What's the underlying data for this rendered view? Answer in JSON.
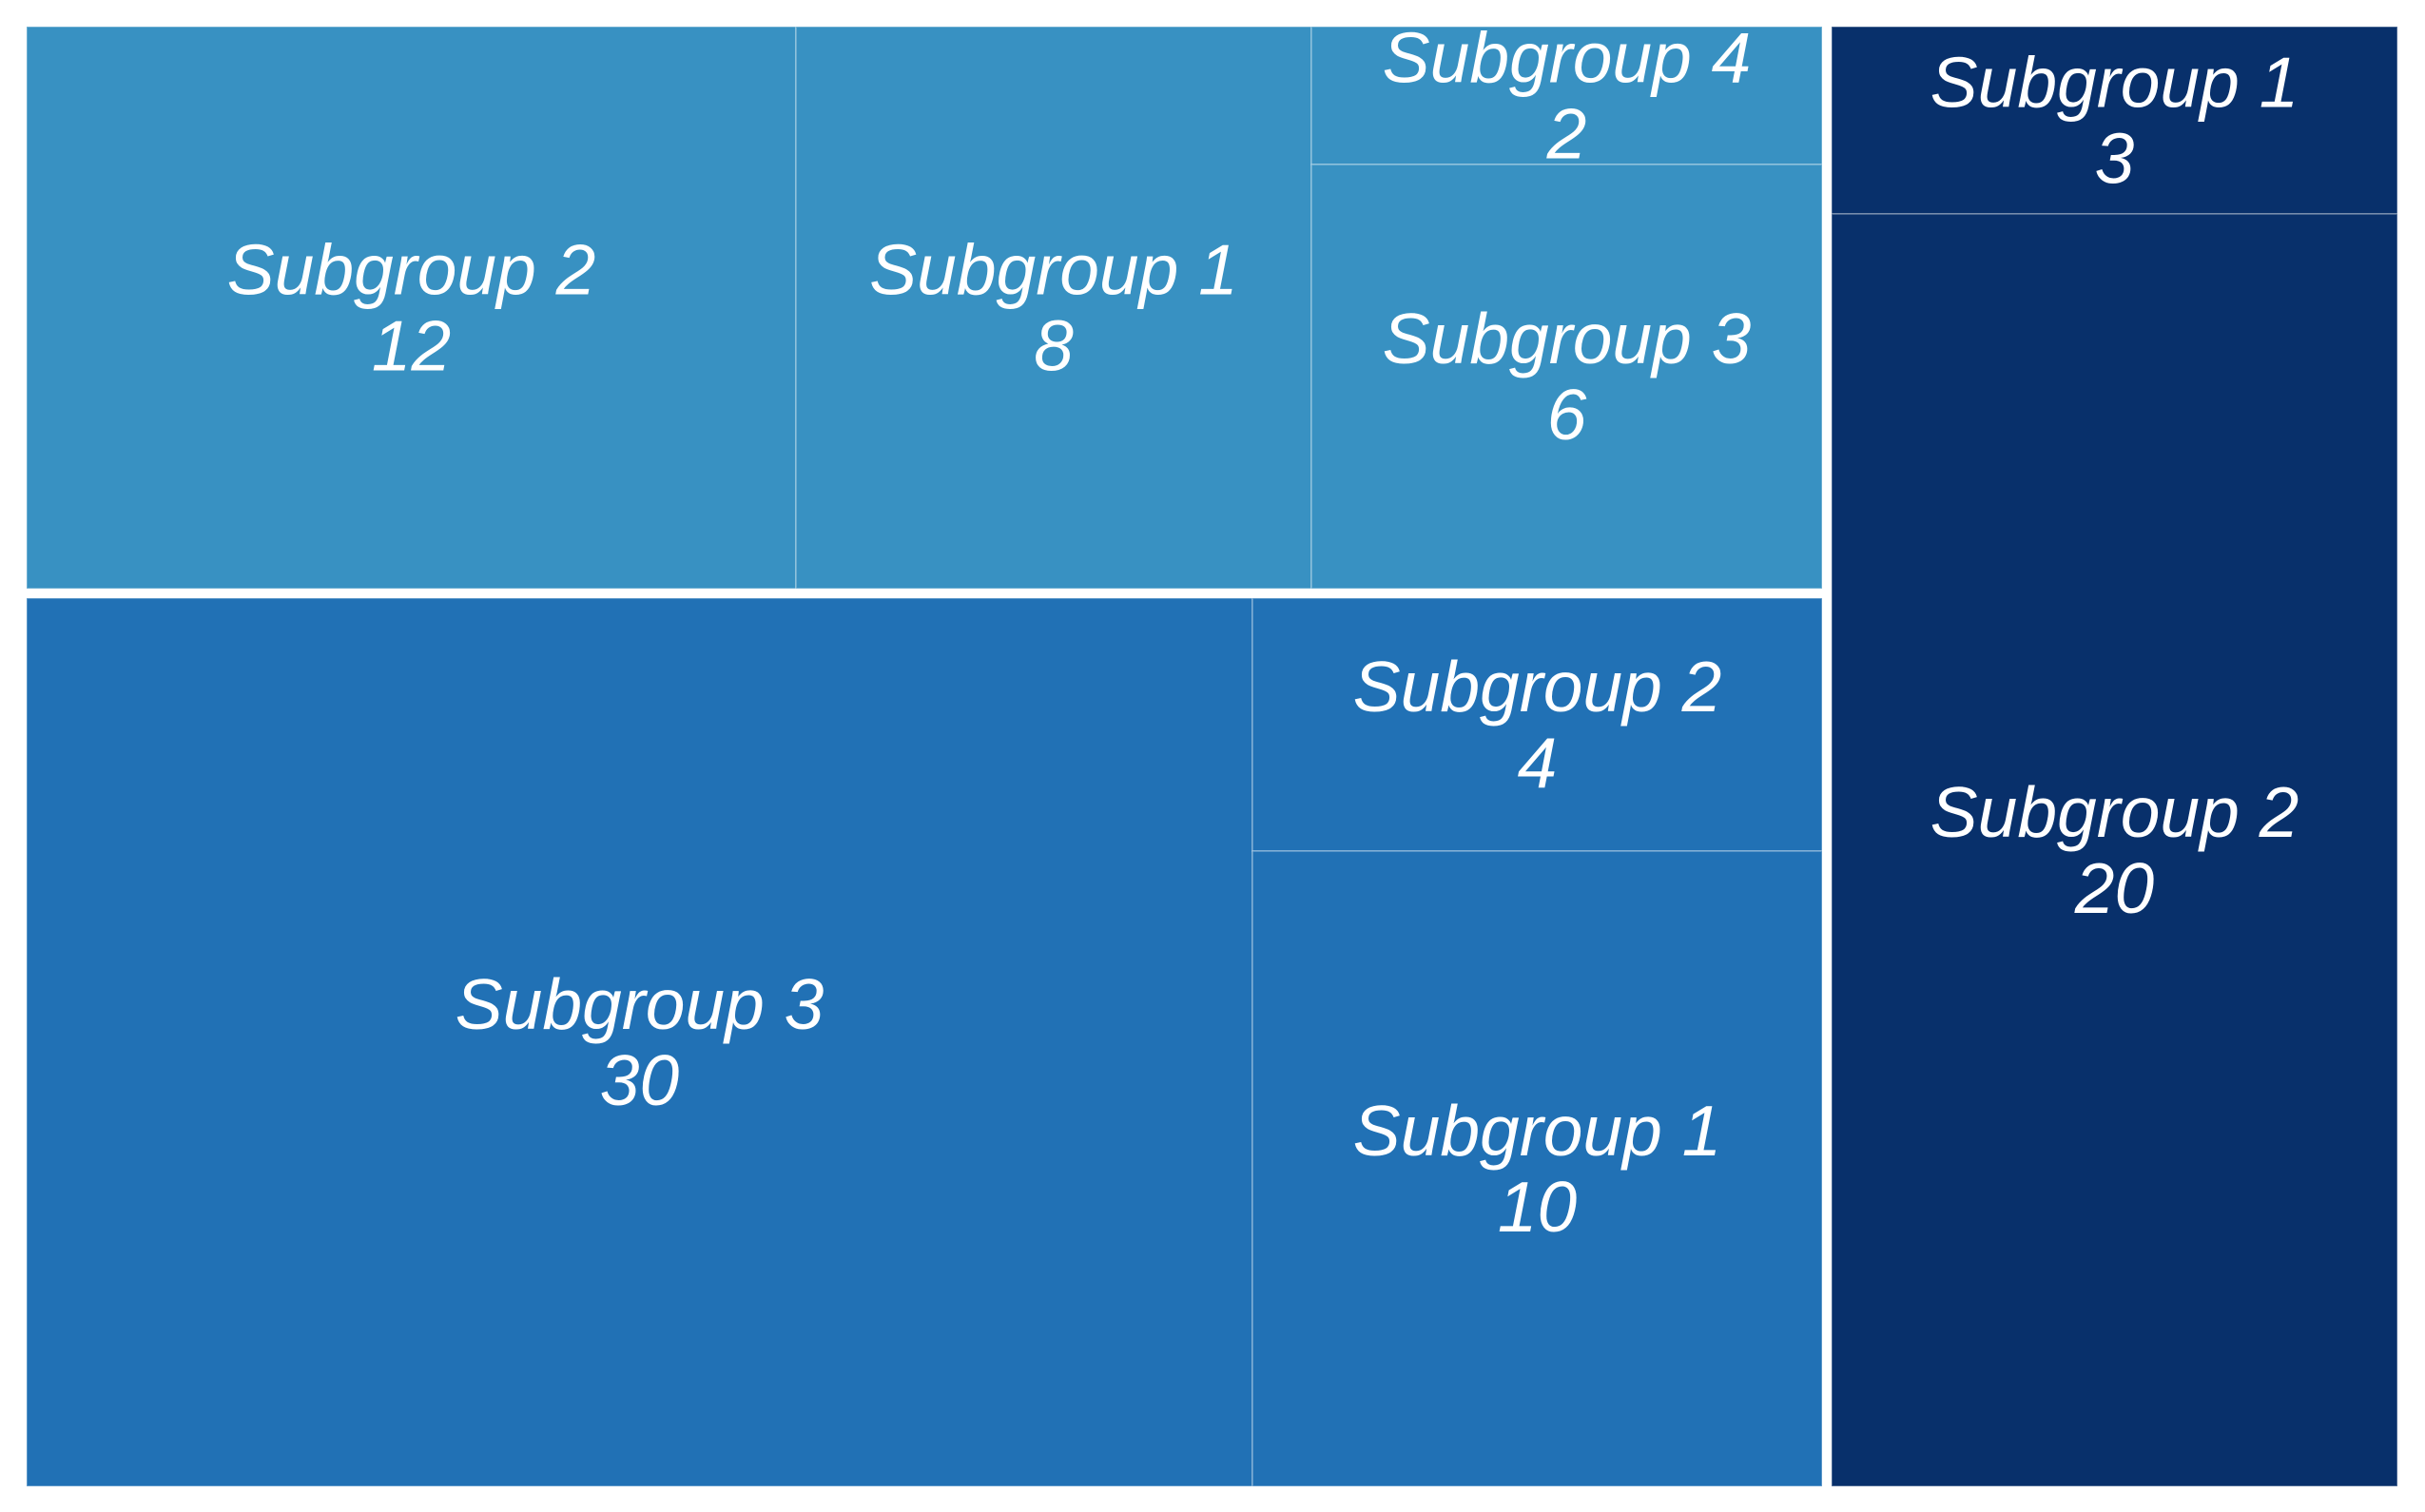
{
  "chart_data": {
    "type": "treemap",
    "groups": [
      {
        "color": "#3891c2",
        "children": [
          {
            "label": "Subgroup 2",
            "value": 12
          },
          {
            "label": "Subgroup 1",
            "value": 8
          },
          {
            "label": "Subgroup 4",
            "value": 2
          },
          {
            "label": "Subgroup 3",
            "value": 6
          }
        ]
      },
      {
        "color": "#2171b5",
        "children": [
          {
            "label": "Subgroup 3",
            "value": 30
          },
          {
            "label": "Subgroup 2",
            "value": 4
          },
          {
            "label": "Subgroup 1",
            "value": 10
          }
        ]
      },
      {
        "color": "#08306b",
        "children": [
          {
            "label": "Subgroup 1",
            "value": 3
          },
          {
            "label": "Subgroup 2",
            "value": 20
          }
        ]
      }
    ]
  }
}
